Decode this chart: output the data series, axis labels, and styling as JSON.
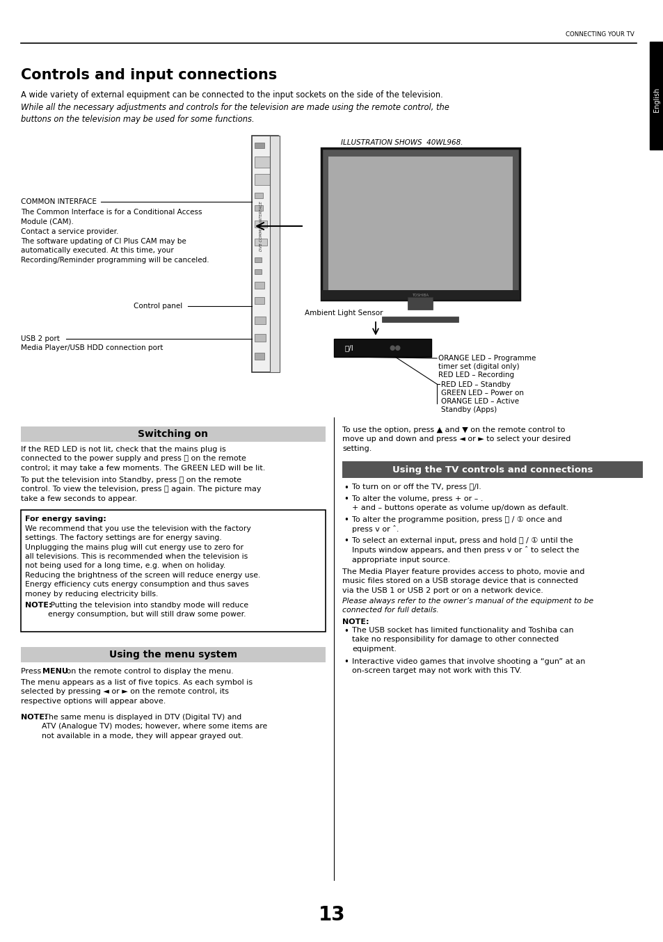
{
  "bg_color": "#ffffff",
  "page_width": 9.54,
  "page_height": 13.54,
  "top_label": "CONNECTING YOUR TV",
  "english_tab_text": "English",
  "title": "Controls and input connections",
  "intro_text1": "A wide variety of external equipment can be connected to the input sockets on the side of the television.",
  "intro_text2": "While all the necessary adjustments and controls for the television are made using the remote control, the\nbuttons on the television may be used for some functions.",
  "illus_label": "ILLUSTRATION SHOWS  40WL968.",
  "common_interface_label": "COMMON INTERFACE",
  "common_interface_text": "The Common Interface is for a Conditional Access\nModule (CAM).\nContact a service provider.\nThe software updating of CI Plus CAM may be\nautomatically executed. At this time, your\nRecording/Reminder programming will be canceled.",
  "control_panel_label": "Control panel",
  "usb2_label": "USB 2 port",
  "usb2_text": "Media Player/USB HDD connection port",
  "ambient_label": "Ambient Light Sensor",
  "orange_led1": "ORANGE LED – Programme",
  "orange_led2": "timer set (digital only)",
  "red_led1": "RED LED – Recording",
  "red_led2_standby": "RED LED – Standby",
  "green_led": "GREEN LED – Power on",
  "orange_led3": "ORANGE LED – Active",
  "standby_apps": "Standby (Apps)",
  "switching_title": "Switching on",
  "switching_p1": "If the RED LED is not lit, check that the mains plug is\nconnected to the power supply and press ⓥ on the remote\ncontrol; it may take a few moments. The GREEN LED will be lit.",
  "switching_p2": "To put the television into Standby, press ⓥ on the remote\ncontrol. To view the television, press ⓥ again. The picture may\ntake a few seconds to appear.",
  "energy_title": "For energy saving:",
  "energy_text": "We recommend that you use the television with the factory\nsettings. The factory settings are for energy saving.\nUnplugging the mains plug will cut energy use to zero for\nall televisions. This is recommended when the television is\nnot being used for a long time, e.g. when on holiday.\nReducing the brightness of the screen will reduce energy use.\nEnergy efficiency cuts energy consumption and thus saves\nmoney by reducing electricity bills.",
  "energy_note_bold": "NOTE:",
  "energy_note_rest": " Putting the television into standby mode will reduce\nenergy consumption, but will still draw some power.",
  "menu_title": "Using the menu system",
  "menu_text1_bold": "MENU",
  "menu_text1_pre": "Press ",
  "menu_text1_post": " on the remote control to display the menu.",
  "menu_text2": "The menu appears as a list of five topics. As each symbol is\nselected by pressing ◄ or ► on the remote control, its\nrespective options will appear above.",
  "menu_note_bold": "NOTE:",
  "menu_note_rest": " The same menu is displayed in DTV (Digital TV) and\nATV (Analogue TV) modes; however, where some items are\nnot available in a mode, they will appear grayed out.",
  "tv_controls_title": "Using the TV controls and connections",
  "tv_controls_bullets": [
    "To turn on or off the TV, press ⓥ/I.",
    "To alter the volume, press + or – .\n+ and – buttons operate as volume up/down as default.",
    "To alter the programme position, press ⓟ / ① once and\npress v or ˆ.",
    "To select an external input, press and hold ⓟ / ① until the\nInputs window appears, and then press v or ˆ to select the\nappropriate input source."
  ],
  "tv_controls_text1": "The Media Player feature provides access to photo, movie and\nmusic files stored on a USB storage device that is connected\nvia the USB 1 or USB 2 port or on a network device.",
  "tv_controls_italic": "Please always refer to the owner’s manual of the equipment to be\nconnected for full details.",
  "tv_controls_note_title": "NOTE:",
  "tv_controls_note_bullets": [
    "The USB socket has limited functionality and Toshiba can\ntake no responsibility for damage to other connected\nequipment.",
    "Interactive video games that involve shooting a “gun” at an\non-screen target may not work with this TV."
  ],
  "remote_control_text": "To use the option, press ▲ and ▼ on the remote control to\nmove up and down and press ◄ or ► to select your desired\nsetting.",
  "page_number": "13"
}
